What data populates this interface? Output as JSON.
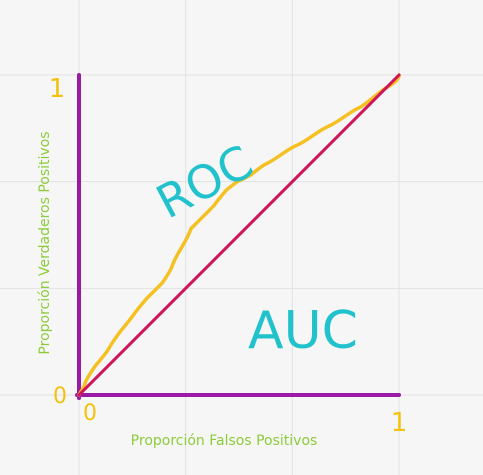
{
  "chart_data": {
    "type": "line",
    "title": "",
    "xlabel": "Proporción Falsos Positivos",
    "ylabel": "Proporción Verdaderos Positivos",
    "xlim": [
      0,
      1
    ],
    "ylim": [
      0,
      1
    ],
    "grid": true,
    "tick_labels": {
      "x_zero": "0",
      "x_one": "1",
      "y_zero": "0",
      "y_one": "1"
    },
    "annotations": {
      "roc": "ROC",
      "auc": "AUC"
    },
    "series": [
      {
        "name": "",
        "kind": "roc-curve",
        "x": [
          0.0,
          0.02,
          0.05,
          0.09,
          0.13,
          0.17,
          0.21,
          0.22,
          0.26,
          0.29,
          0.32,
          0.35,
          0.39,
          0.42,
          0.46,
          0.5,
          0.54,
          0.58,
          0.63,
          0.68,
          0.73,
          0.78,
          0.83,
          0.88,
          0.92,
          0.96,
          0.99,
          1.0
        ],
        "y": [
          0.0,
          0.04,
          0.09,
          0.14,
          0.2,
          0.25,
          0.3,
          0.31,
          0.35,
          0.4,
          0.46,
          0.52,
          0.56,
          0.59,
          0.64,
          0.67,
          0.69,
          0.72,
          0.75,
          0.78,
          0.81,
          0.84,
          0.87,
          0.9,
          0.93,
          0.96,
          0.98,
          1.0
        ]
      },
      {
        "name": "",
        "kind": "diagonal",
        "x": [
          0,
          1
        ],
        "y": [
          0,
          1
        ]
      }
    ],
    "colors": {
      "axes": "#9a1aa6",
      "roc_curve": "#f5c022",
      "diagonal": "#d0145c",
      "tick_labels": "#f2c20f",
      "axis_titles": "#8ccc3a",
      "annotations": "#22c2cc",
      "grid": "#e2e2e2"
    }
  }
}
